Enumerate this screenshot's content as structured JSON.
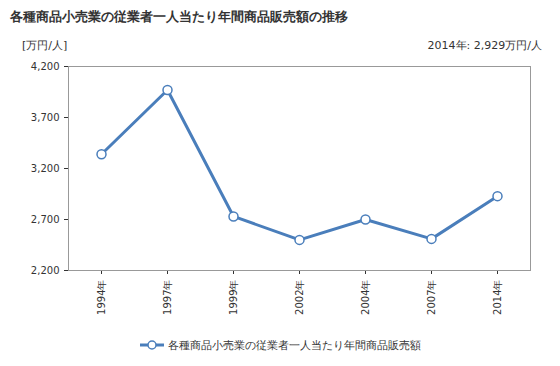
{
  "chart_data": {
    "type": "line",
    "title": "各種商品小売業の従業者一人当たり年間商品販売額の推移",
    "y_label": "[万円/人]",
    "annotation": "2014年: 2,929万円/人",
    "categories": [
      "1994年",
      "1997年",
      "1999年",
      "2002年",
      "2004年",
      "2007年",
      "2014年"
    ],
    "series": [
      {
        "name": "各種商品小売業の従業者一人当たり年間商品販売額",
        "color": "#4a7ebb",
        "marker": "circle",
        "values": [
          3340,
          3970,
          2730,
          2500,
          2700,
          2510,
          2929
        ]
      }
    ],
    "ylim": [
      2200,
      4200
    ],
    "yticks": [
      {
        "value": 2200,
        "label": "2,200"
      },
      {
        "value": 2700,
        "label": "2,700"
      },
      {
        "value": 3200,
        "label": "3,200"
      },
      {
        "value": 3700,
        "label": "3,700"
      },
      {
        "value": 4200,
        "label": "4,200"
      }
    ],
    "grid": false,
    "legend": "bottom"
  }
}
